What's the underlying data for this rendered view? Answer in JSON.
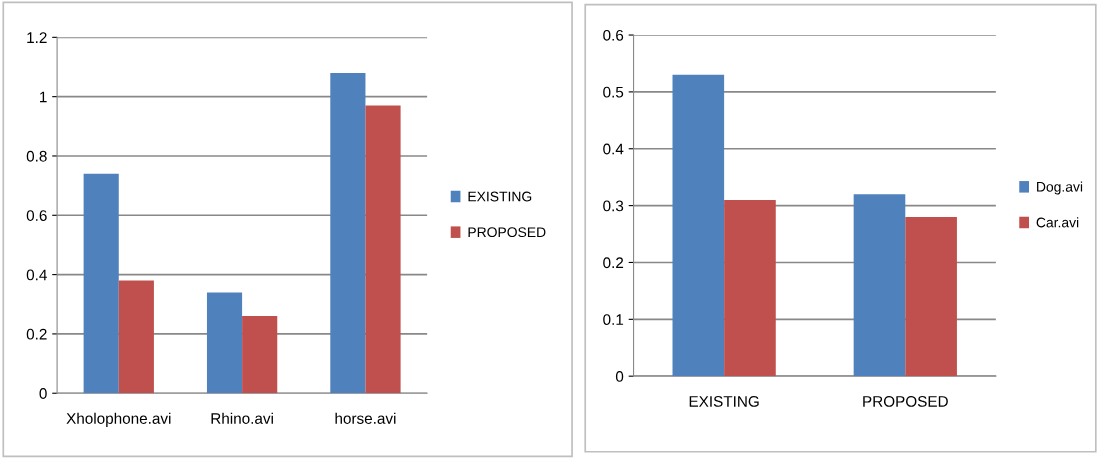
{
  "chart_data": [
    {
      "type": "bar",
      "categories": [
        "Xholophone.avi",
        "Rhino.avi",
        "horse.avi"
      ],
      "series": [
        {
          "name": "EXISTING",
          "color": "#4f81bd",
          "values": [
            0.74,
            0.34,
            1.08
          ]
        },
        {
          "name": "PROPOSED",
          "color": "#c0504d",
          "values": [
            0.38,
            0.26,
            0.97
          ]
        }
      ],
      "ylim": [
        0,
        1.2
      ],
      "yticks": [
        0,
        0.2,
        0.4,
        0.6,
        0.8,
        1,
        1.2
      ],
      "grid": "y",
      "legend": "right"
    },
    {
      "type": "bar",
      "categories": [
        "EXISTING",
        "PROPOSED"
      ],
      "series": [
        {
          "name": "Dog.avi",
          "color": "#4f81bd",
          "values": [
            0.53,
            0.32
          ]
        },
        {
          "name": "Car.avi",
          "color": "#c0504d",
          "values": [
            0.31,
            0.28
          ]
        }
      ],
      "ylim": [
        0,
        0.6
      ],
      "yticks": [
        0,
        0.1,
        0.2,
        0.3,
        0.4,
        0.5,
        0.6
      ],
      "grid": "y",
      "legend": "right"
    }
  ]
}
